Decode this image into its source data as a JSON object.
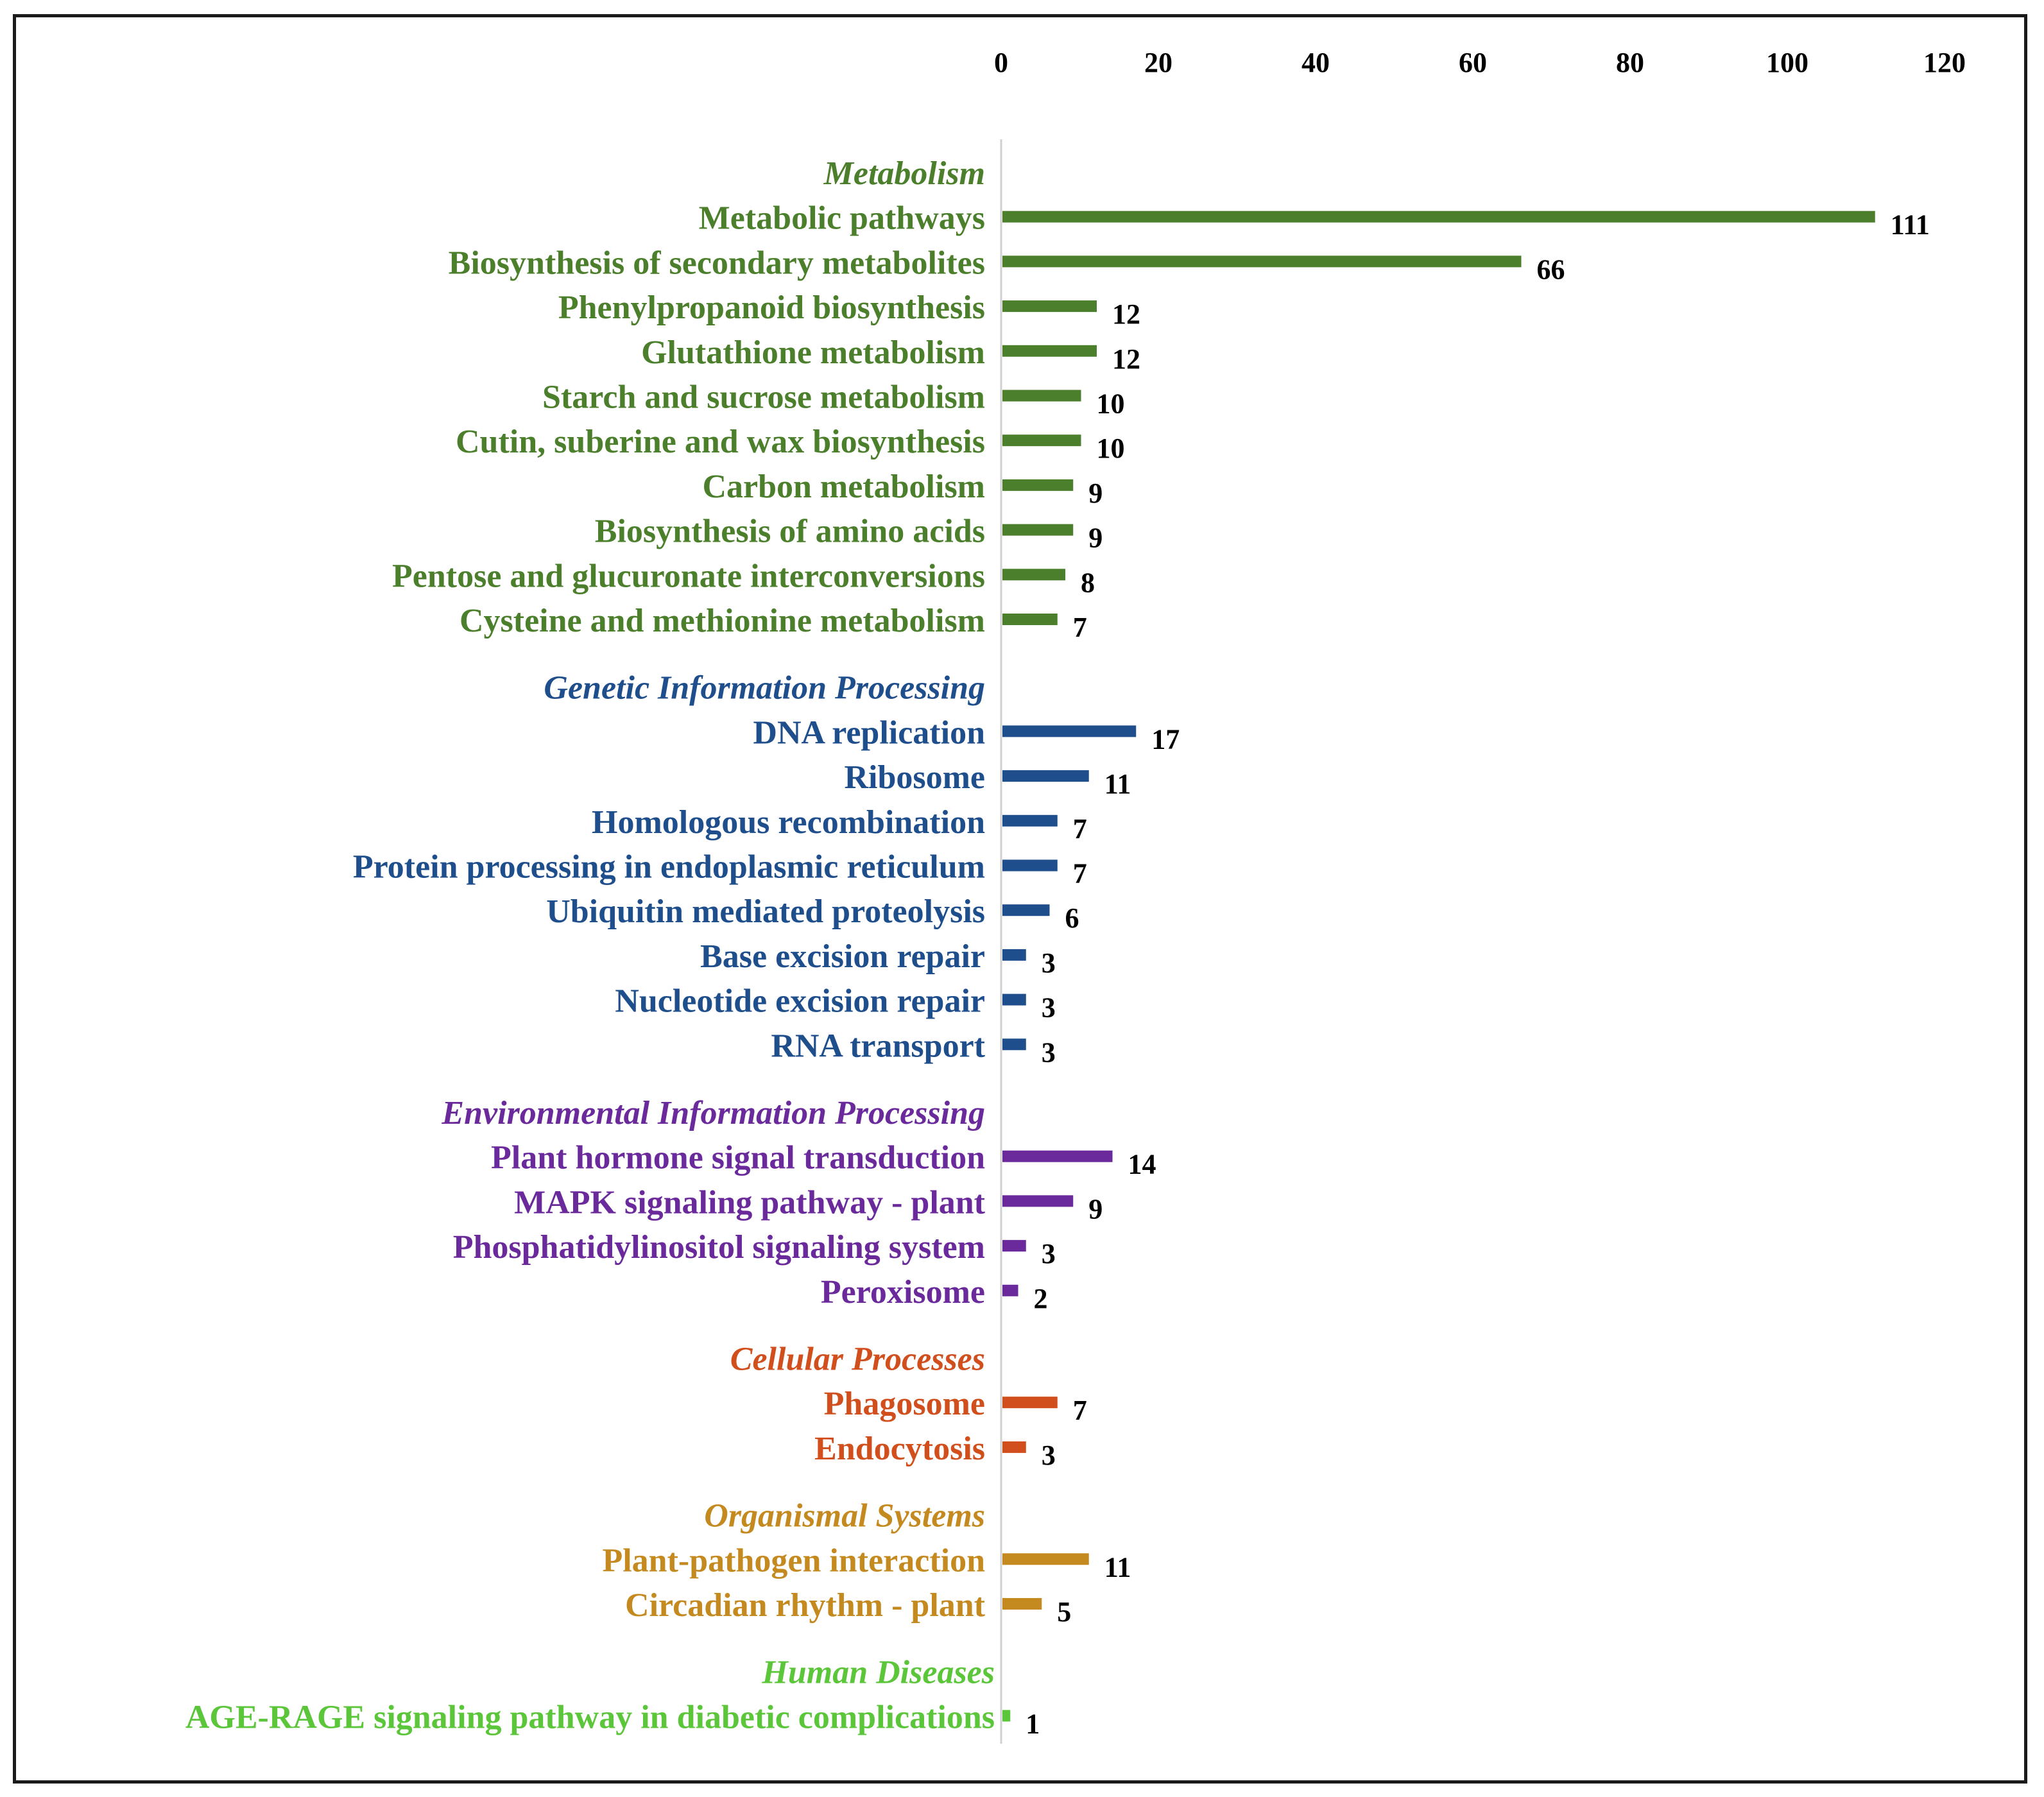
{
  "chart_data": {
    "type": "bar",
    "orientation": "horizontal",
    "title": "",
    "xlabel": "",
    "ylabel": "",
    "xlim": [
      0,
      120
    ],
    "xticks": [
      0,
      20,
      40,
      60,
      80,
      100,
      120
    ],
    "axis_position": "top",
    "grid": false,
    "groups": [
      {
        "name": "Metabolism",
        "color": "#4c7f2c",
        "items": [
          {
            "label": "Metabolic pathways",
            "value": 111
          },
          {
            "label": "Biosynthesis of secondary metabolites",
            "value": 66
          },
          {
            "label": "Phenylpropanoid biosynthesis",
            "value": 12
          },
          {
            "label": "Glutathione metabolism",
            "value": 12
          },
          {
            "label": "Starch and sucrose metabolism",
            "value": 10
          },
          {
            "label": "Cutin, suberine and wax biosynthesis",
            "value": 10
          },
          {
            "label": "Carbon metabolism",
            "value": 9
          },
          {
            "label": "Biosynthesis of amino acids",
            "value": 9
          },
          {
            "label": "Pentose and glucuronate interconversions",
            "value": 8
          },
          {
            "label": "Cysteine and methionine metabolism",
            "value": 7
          }
        ]
      },
      {
        "name": "Genetic Information Processing",
        "color": "#1f4e8c",
        "items": [
          {
            "label": "DNA replication",
            "value": 17
          },
          {
            "label": "Ribosome",
            "value": 11
          },
          {
            "label": "Homologous recombination",
            "value": 7
          },
          {
            "label": "Protein processing in endoplasmic reticulum",
            "value": 7
          },
          {
            "label": "Ubiquitin mediated proteolysis",
            "value": 6
          },
          {
            "label": "Base excision repair",
            "value": 3
          },
          {
            "label": "Nucleotide excision repair",
            "value": 3
          },
          {
            "label": "RNA transport",
            "value": 3
          }
        ]
      },
      {
        "name": "Environmental Information Processing",
        "color": "#6b2a9b",
        "items": [
          {
            "label": "Plant hormone signal transduction",
            "value": 14
          },
          {
            "label": "MAPK signaling pathway - plant",
            "value": 9
          },
          {
            "label": "Phosphatidylinositol signaling system",
            "value": 3
          },
          {
            "label": "Peroxisome",
            "value": 2
          }
        ]
      },
      {
        "name": "Cellular Processes",
        "color": "#d14f1c",
        "items": [
          {
            "label": "Phagosome",
            "value": 7
          },
          {
            "label": "Endocytosis",
            "value": 3
          }
        ]
      },
      {
        "name": "Organismal Systems",
        "color": "#c48a20",
        "items": [
          {
            "label": "Plant-pathogen interaction",
            "value": 11
          },
          {
            "label": "Circadian rhythm - plant",
            "value": 5
          }
        ]
      },
      {
        "name": "Human Diseases",
        "color": "#5cc63a",
        "items": [
          {
            "label": "AGE-RAGE signaling pathway in diabetic complications",
            "value": 1
          }
        ]
      }
    ]
  }
}
